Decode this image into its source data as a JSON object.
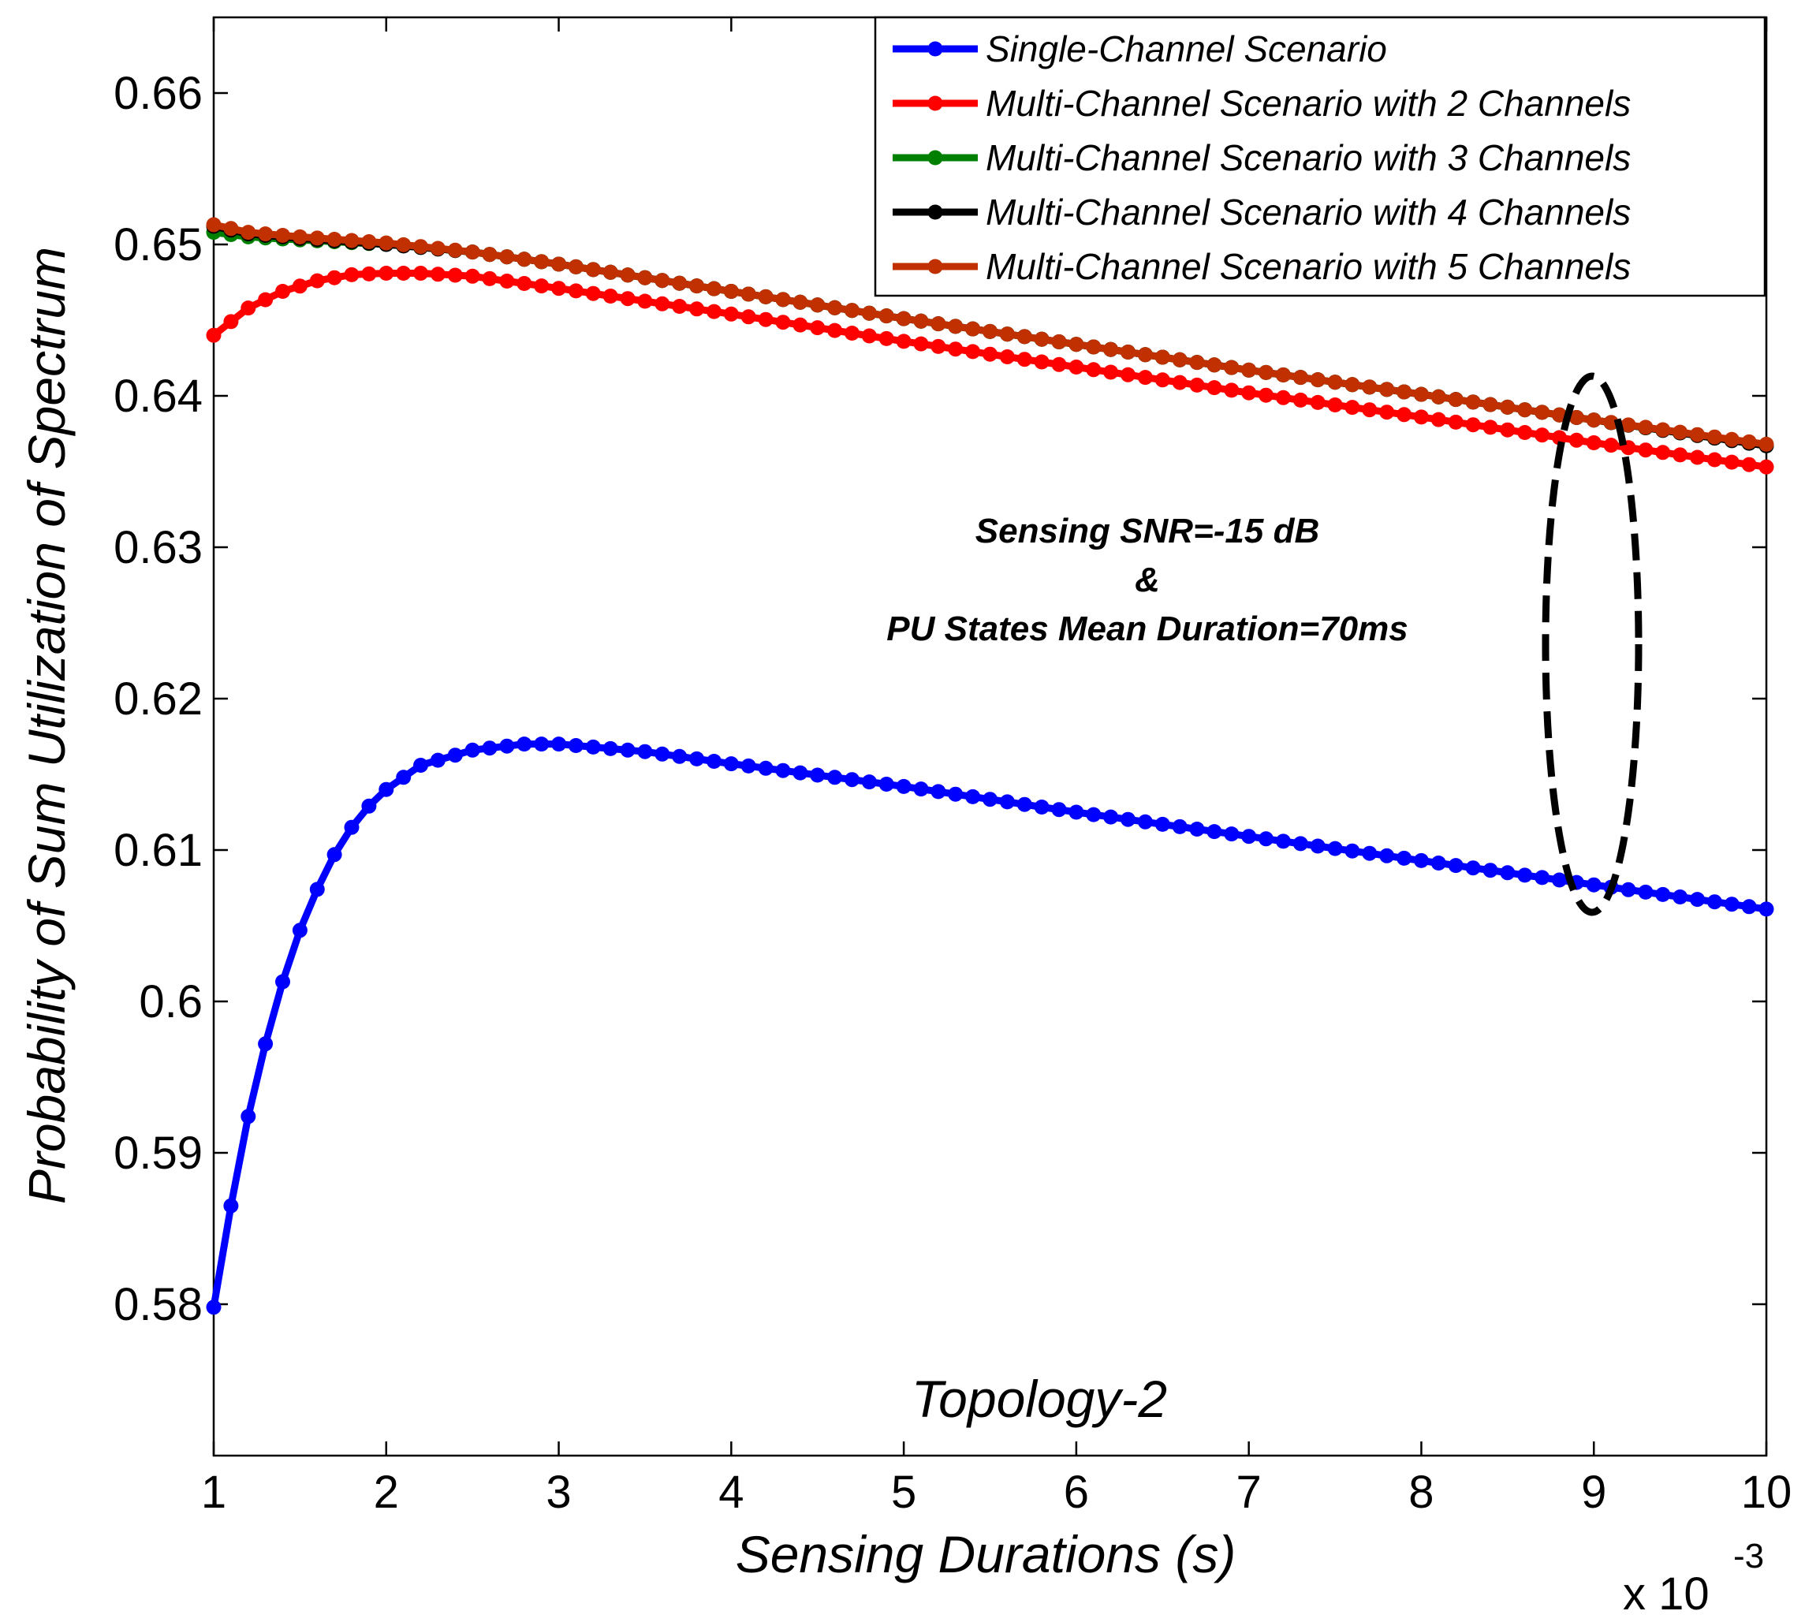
{
  "chart_data": {
    "type": "line",
    "title": "",
    "xlabel": "Sensing Durations (s)",
    "ylabel": "Probability of Sum Utilization of Spectrum",
    "xlim": [
      1,
      10
    ],
    "ylim": [
      0.57,
      0.665
    ],
    "x_scale_base": "x 10",
    "x_scale_exponent": "-3",
    "x_ticks": [
      "1",
      "2",
      "3",
      "4",
      "5",
      "6",
      "7",
      "8",
      "9",
      "10"
    ],
    "y_ticks": [
      "0.58",
      "0.59",
      "0.6",
      "0.61",
      "0.62",
      "0.63",
      "0.64",
      "0.65",
      "0.66"
    ],
    "legend_position": "top-right",
    "grid": false,
    "series": [
      {
        "name": "Single-Channel Scenario",
        "color": "#0000ff",
        "x": [
          1.0,
          1.1,
          1.2,
          1.3,
          1.4,
          1.5,
          1.6,
          1.7,
          1.8,
          1.9,
          2.0,
          2.2,
          2.5,
          2.8,
          3.0,
          3.5,
          4.0,
          5.0,
          6.0,
          7.0,
          8.0,
          9.0,
          10.0
        ],
        "values": [
          0.5798,
          0.5865,
          0.5924,
          0.5972,
          0.6013,
          0.6047,
          0.6074,
          0.6097,
          0.6115,
          0.6129,
          0.614,
          0.6156,
          0.6166,
          0.617,
          0.617,
          0.6165,
          0.6157,
          0.6142,
          0.6125,
          0.6109,
          0.6093,
          0.6077,
          0.6061
        ]
      },
      {
        "name": "Multi-Channel Scenario with 2 Channels",
        "color": "#ff0000",
        "x": [
          1.0,
          1.2,
          1.4,
          1.6,
          1.8,
          2.0,
          2.2,
          2.5,
          3.0,
          4.0,
          5.0,
          6.0,
          7.0,
          8.0,
          9.0,
          10.0
        ],
        "values": [
          0.644,
          0.6458,
          0.6469,
          0.6476,
          0.648,
          0.6481,
          0.6481,
          0.6479,
          0.6471,
          0.6454,
          0.6436,
          0.6419,
          0.6402,
          0.6386,
          0.6369,
          0.6353
        ]
      },
      {
        "name": "Multi-Channel Scenario with 3 Channels",
        "color": "#008000",
        "x": [
          1.0,
          1.2,
          1.5,
          2.0,
          2.5,
          3.0,
          4.0,
          5.0,
          6.0,
          7.0,
          8.0,
          9.0,
          10.0
        ],
        "values": [
          0.6508,
          0.6505,
          0.6503,
          0.65,
          0.6495,
          0.6487,
          0.6469,
          0.6451,
          0.6434,
          0.6417,
          0.6401,
          0.6384,
          0.6367
        ]
      },
      {
        "name": "Multi-Channel Scenario with 4 Channels",
        "color": "#000000",
        "x": [
          1.0,
          1.2,
          1.5,
          2.0,
          2.5,
          3.0,
          4.0,
          5.0,
          6.0,
          7.0,
          8.0,
          9.0,
          10.0
        ],
        "values": [
          0.6512,
          0.6507,
          0.6504,
          0.65,
          0.6495,
          0.6487,
          0.6469,
          0.6451,
          0.6434,
          0.6417,
          0.6401,
          0.6384,
          0.6367
        ]
      },
      {
        "name": "Multi-Channel Scenario with 5 Channels",
        "color": "#c03000",
        "x": [
          1.0,
          1.2,
          1.5,
          2.0,
          2.5,
          3.0,
          4.0,
          5.0,
          6.0,
          7.0,
          8.0,
          9.0,
          10.0
        ],
        "values": [
          0.6513,
          0.6508,
          0.6505,
          0.6501,
          0.6495,
          0.6487,
          0.6469,
          0.6451,
          0.6434,
          0.6417,
          0.6401,
          0.6384,
          0.6368
        ]
      }
    ],
    "annotations": {
      "line1": "Sensing SNR=-15 dB",
      "line2": "&",
      "line3": "PU States Mean Duration=70ms",
      "topology": "Topology-2"
    }
  }
}
